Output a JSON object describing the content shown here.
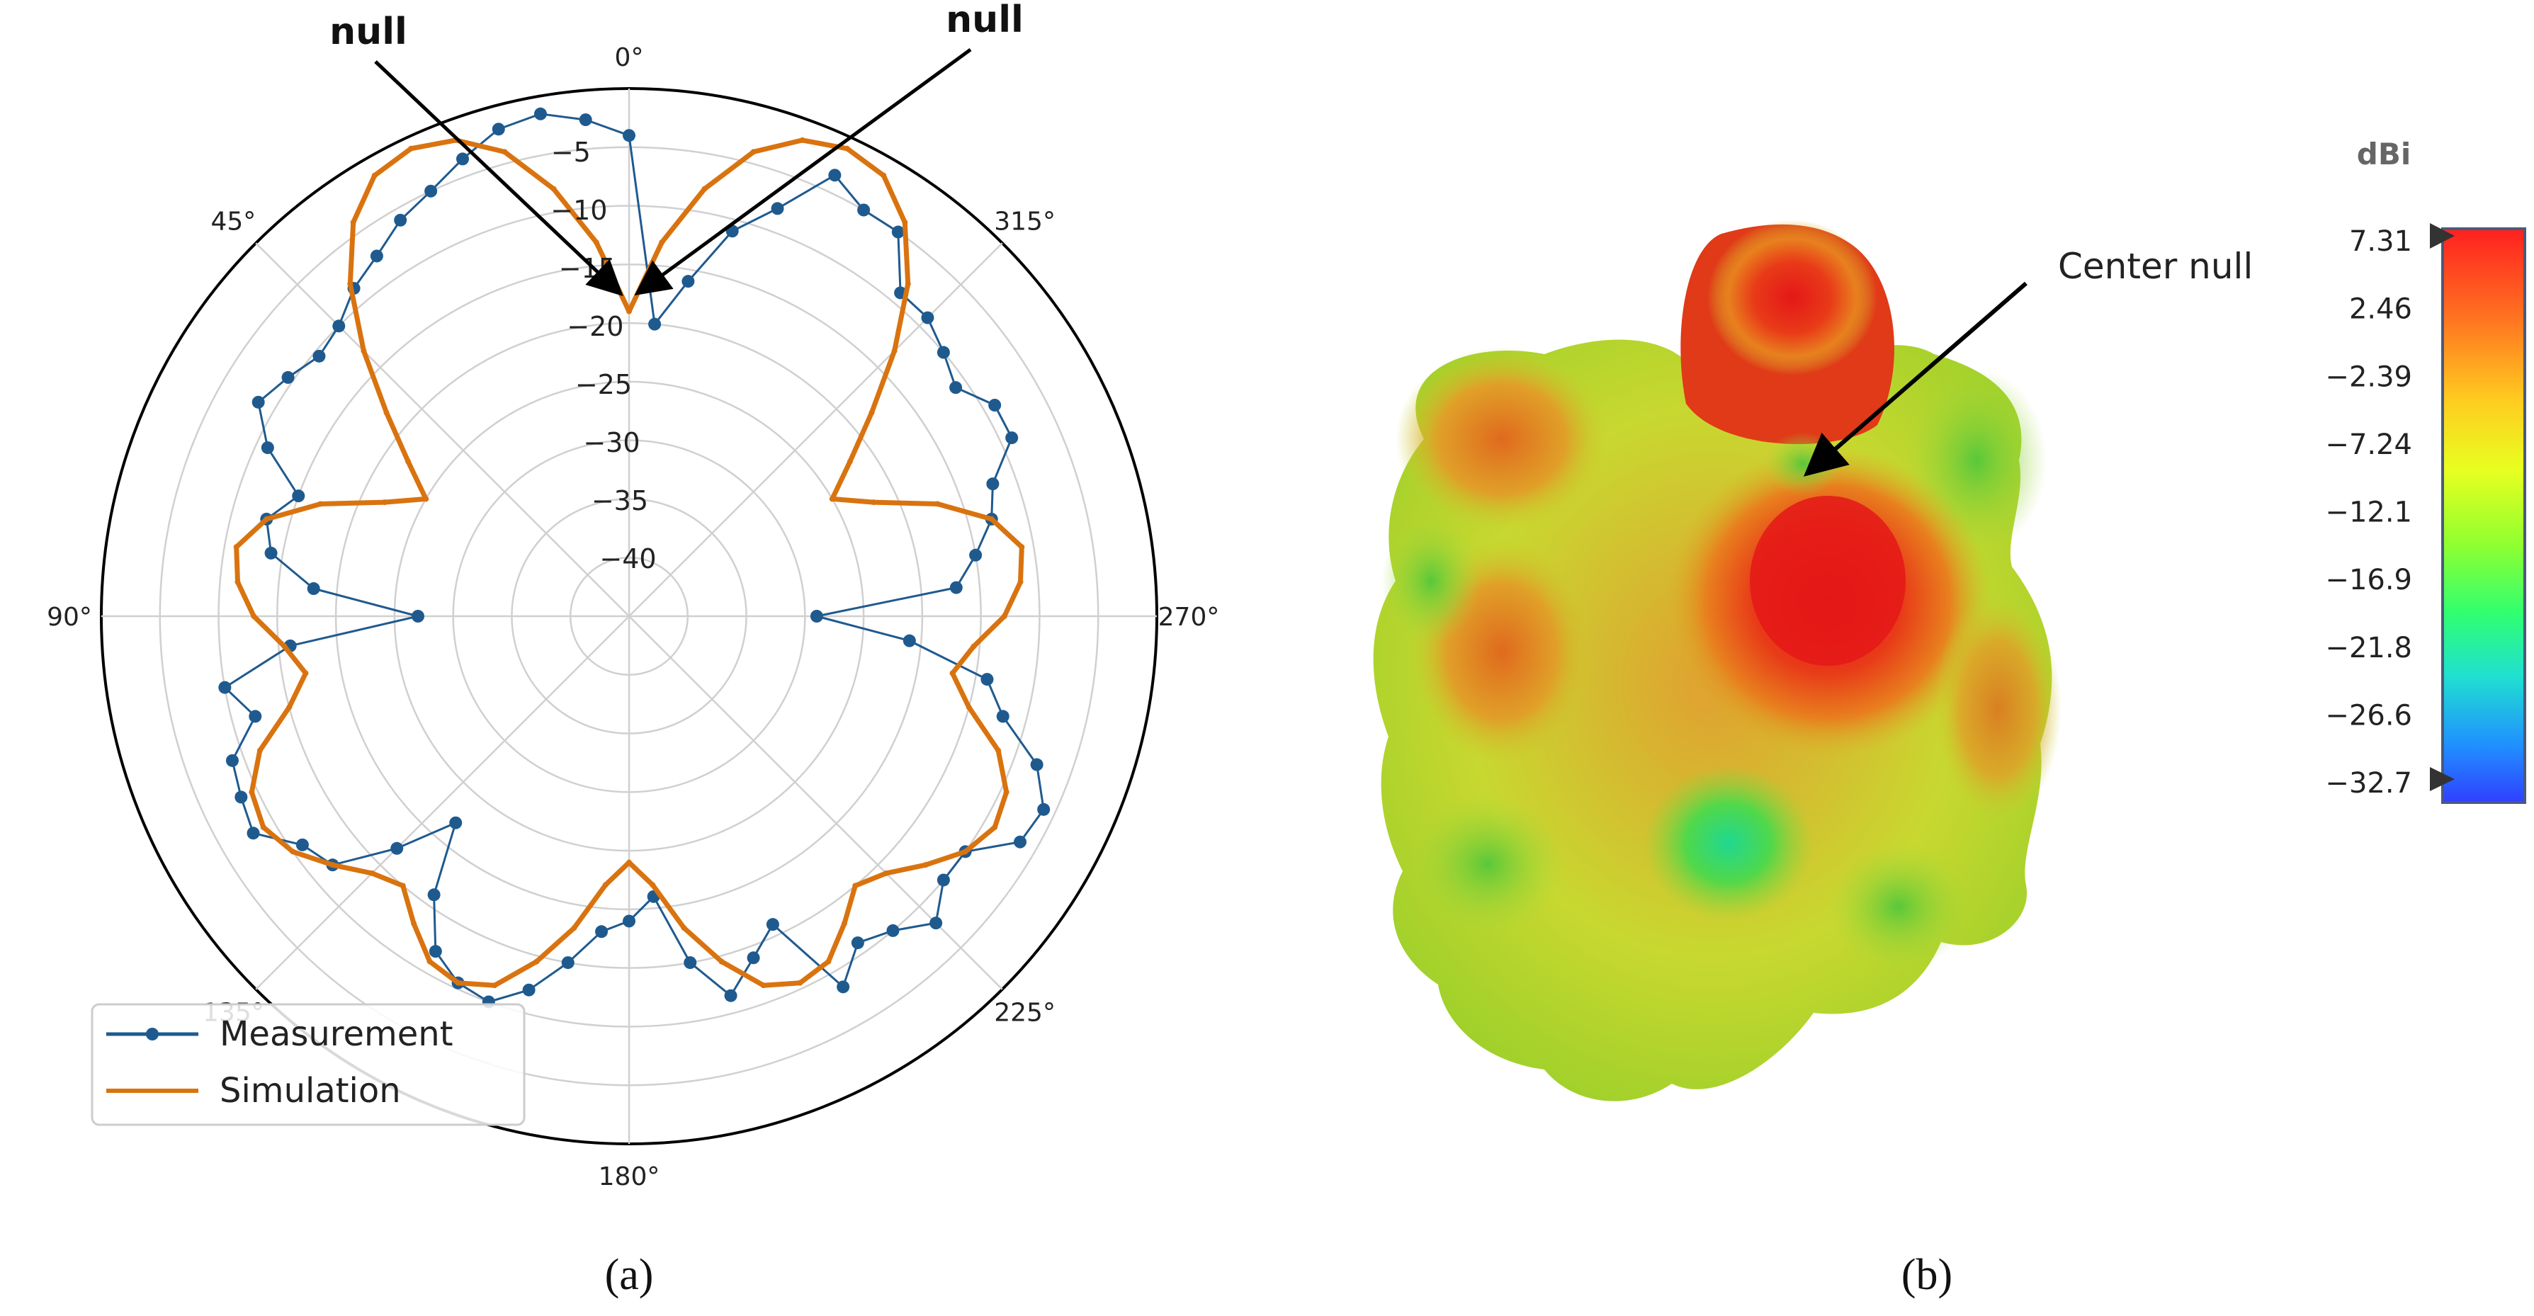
{
  "chart_data": [
    {
      "type": "line",
      "coordinate_system": "polar",
      "angle_zero": "top",
      "angle_direction": "counterclockwise",
      "angle_ticks": [
        "0°",
        "45°",
        "90°",
        "135°",
        "180°",
        "225°",
        "270°",
        "315°"
      ],
      "angle_tick_values": [
        0,
        45,
        90,
        135,
        180,
        225,
        270,
        315
      ],
      "radial_ticks": [
        "−5",
        "−10",
        "−15",
        "−20",
        "−25",
        "−30",
        "−35",
        "−40"
      ],
      "radial_tick_values": [
        -5,
        -10,
        -15,
        -20,
        -25,
        -30,
        -35,
        -40
      ],
      "rlim": [
        -45,
        0
      ],
      "grid": true,
      "legend": "lower-left",
      "legend_entries": [
        "Measurement",
        "Simulation"
      ],
      "series": [
        {
          "name": "Simulation",
          "color": "#d9730f",
          "marker": "small-dot",
          "angles": [
            0,
            5,
            10,
            15,
            20,
            25,
            30,
            35,
            40,
            45,
            50,
            55,
            60,
            65,
            70,
            75,
            80,
            85,
            90,
            95,
            100,
            105,
            110,
            115,
            120,
            125,
            130,
            135,
            140,
            145,
            150,
            155,
            160,
            165,
            170,
            175,
            180,
            185,
            190,
            195,
            200,
            205,
            210,
            215,
            220,
            225,
            230,
            235,
            240,
            245,
            250,
            255,
            260,
            265,
            270,
            275,
            280,
            285,
            290,
            295,
            300,
            305,
            310,
            315,
            320,
            325,
            330,
            335,
            340,
            345,
            350,
            355
          ],
          "values": [
            -19,
            -13,
            -8,
            -4,
            -1.8,
            -1,
            -1.6,
            -4,
            -8,
            -13,
            -18,
            -22,
            -25,
            -22,
            -17,
            -13,
            -11,
            -11.5,
            -13,
            -15.5,
            -17,
            -15,
            -11.5,
            -9.5,
            -9,
            -10,
            -12,
            -14,
            -15,
            -13,
            -11,
            -10.5,
            -11.5,
            -14.5,
            -18,
            -22,
            -24,
            -22,
            -18,
            -14.5,
            -11.5,
            -10.5,
            -11,
            -13,
            -15,
            -14,
            -12,
            -10,
            -9,
            -9.5,
            -11.5,
            -15,
            -17,
            -15.5,
            -13,
            -11.5,
            -11,
            -13,
            -17,
            -22,
            -25,
            -22,
            -18,
            -13,
            -8,
            -4,
            -1.6,
            -1,
            -1.8,
            -4,
            -8,
            -13
          ]
        },
        {
          "name": "Measurement",
          "color": "#1f5a8f",
          "marker": "circle",
          "angles": [
            0,
            5,
            10,
            15,
            20,
            25,
            30,
            35,
            40,
            45,
            50,
            55,
            60,
            65,
            70,
            75,
            80,
            85,
            90,
            95,
            100,
            105,
            110,
            115,
            120,
            125,
            130,
            135,
            140,
            145,
            150,
            155,
            160,
            165,
            170,
            175,
            180,
            185,
            190,
            195,
            200,
            205,
            210,
            215,
            220,
            225,
            230,
            235,
            240,
            245,
            250,
            255,
            260,
            265,
            270,
            275,
            280,
            285,
            290,
            295,
            300,
            305,
            310,
            315,
            320,
            325,
            330,
            335,
            340,
            345,
            350,
            355
          ],
          "values": [
            -4,
            -2.5,
            -1.5,
            -2,
            -3.5,
            -5,
            -6,
            -7.5,
            -8.5,
            -10,
            -10.5,
            -9.5,
            -8.5,
            -11,
            -15,
            -13,
            -14,
            -18,
            -27,
            -16,
            -10,
            -12,
            -9,
            -8.5,
            -8,
            -11,
            -12,
            -17,
            -22,
            -16,
            -12,
            -10.5,
            -10,
            -12,
            -15,
            -18,
            -19,
            -21,
            -15,
            -11.5,
            -14,
            -16,
            -8.5,
            -11,
            -10,
            -8,
            -10,
            -10,
            -6.5,
            -6,
            -8,
            -12,
            -14,
            -21,
            -29,
            -17,
            -15,
            -13,
            -12,
            -9,
            -9,
            -11,
            -10,
            -9,
            -9,
            -5,
            -5,
            -3.5,
            -8,
            -11,
            -16,
            -20
          ]
        }
      ],
      "annotations": [
        {
          "text": "null",
          "angle": 2,
          "value": -18
        },
        {
          "text": "null",
          "angle": 358,
          "value": -18
        }
      ],
      "panel_label": "(a)"
    },
    {
      "type": "heatmap",
      "colorbar_title": "dBi",
      "colorbar_ticks": [
        "7.31",
        "2.46",
        "−2.39",
        "−7.24",
        "−12.1",
        "−16.9",
        "−21.8",
        "−26.6",
        "−32.7"
      ],
      "colorbar_values": [
        7.31,
        2.46,
        -2.39,
        -7.24,
        -12.1,
        -16.9,
        -21.8,
        -26.6,
        -32.7
      ],
      "colormap": [
        "#ff2020",
        "#ff8020",
        "#ffd020",
        "#e8ff20",
        "#a0ff30",
        "#40ff60",
        "#20e0d0",
        "#20a0ff",
        "#3040ff"
      ],
      "annotation": "Center null",
      "panel_label": "(b)"
    }
  ]
}
